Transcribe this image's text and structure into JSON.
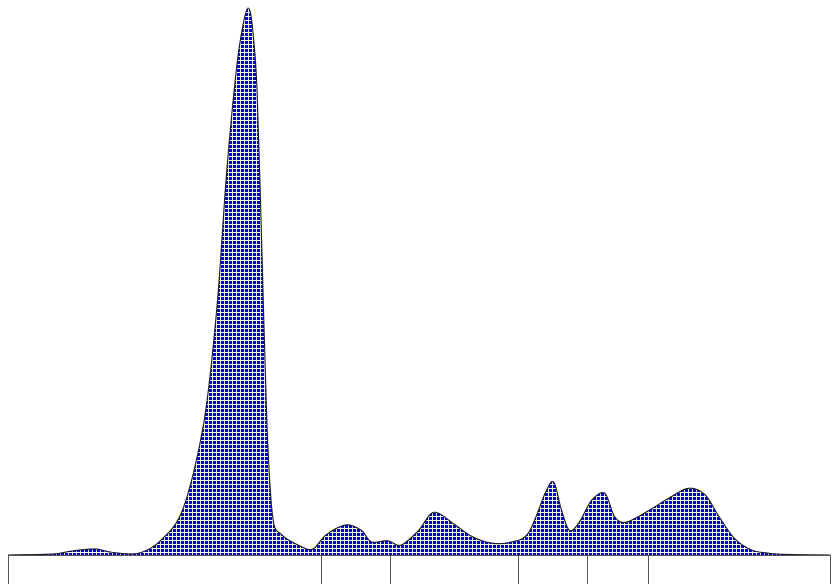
{
  "chart_data": {
    "type": "area",
    "title": "",
    "xlabel": "",
    "ylabel": "",
    "xlim": [
      0,
      100
    ],
    "ylim": [
      0,
      100
    ],
    "grid": false,
    "legend": "none",
    "fill_pattern": "grid-mesh",
    "x": [
      0,
      5.6,
      7.6,
      10.6,
      12.6,
      15.8,
      18.6,
      21.3,
      23.8,
      25.4,
      26.6,
      27.8,
      28.6,
      29.2,
      29.7,
      30.3,
      30.9,
      31.5,
      32.2,
      33.3,
      35.6,
      37.1,
      38.7,
      41.1,
      43.0,
      44.2,
      46.2,
      47.8,
      49.9,
      51.8,
      54.3,
      56.3,
      58.7,
      61.0,
      63.3,
      65.4,
      66.4,
      67.3,
      68.3,
      69.5,
      71.0,
      72.6,
      73.8,
      75.2,
      77.8,
      80.5,
      82.8,
      84.8,
      86.5,
      88.4,
      90.5,
      92.7,
      94.8,
      100
    ],
    "y": [
      0,
      0.2,
      0.7,
      1.1,
      0.5,
      0.3,
      2.7,
      8.5,
      24,
      45,
      70,
      89,
      97,
      100,
      97,
      85,
      55,
      24,
      7,
      3.7,
      1.6,
      1.1,
      3.7,
      5.5,
      4.5,
      2.4,
      2.6,
      1.8,
      4.4,
      7.8,
      5.6,
      3.5,
      2.2,
      2.3,
      4.0,
      11.5,
      13.3,
      8.4,
      4.5,
      6.0,
      10.0,
      11.3,
      7.0,
      6.0,
      8.0,
      10.5,
      12.2,
      11.0,
      7.0,
      3.0,
      0.9,
      0.3,
      0.1,
      0
    ],
    "axis_ticks": [
      0,
      38.1,
      46.5,
      62.0,
      70.4,
      77.8,
      100
    ],
    "colors": {
      "fill": "#0000cc",
      "mesh": "#ffffff",
      "outline": "#1a1a2e",
      "axis": "#555555"
    }
  }
}
